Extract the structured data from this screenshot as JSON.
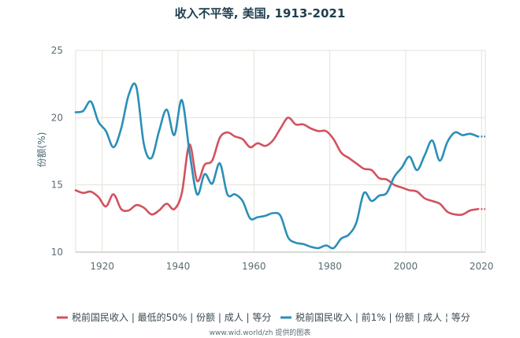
{
  "title": "收入不平等, 美国, 1913-2021",
  "credit": "www.wid.world/zh 提供的图表",
  "colors": {
    "bottom50": "#d2525e",
    "top1": "#2a8fb8",
    "grid": "#e2e2d8"
  },
  "chart_data": {
    "type": "line",
    "title": "收入不平等, 美国, 1913-2021",
    "xlabel": "",
    "ylabel": "份额(%)",
    "xlim": [
      1913,
      2021
    ],
    "ylim": [
      10,
      25
    ],
    "xticks": [
      1920,
      1940,
      1960,
      1980,
      2000,
      2020
    ],
    "yticks": [
      10,
      15,
      20,
      25
    ],
    "grid": true,
    "legend_position": "bottom",
    "series": [
      {
        "name": "税前国民收入 | 最低的50% | 份额 | 成人 | 等分",
        "color": "#d2525e",
        "x": [
          1913,
          1915,
          1917,
          1919,
          1921,
          1923,
          1925,
          1927,
          1929,
          1931,
          1933,
          1935,
          1937,
          1939,
          1941,
          1943,
          1945,
          1947,
          1949,
          1951,
          1953,
          1955,
          1957,
          1959,
          1961,
          1963,
          1965,
          1967,
          1969,
          1971,
          1973,
          1975,
          1977,
          1979,
          1981,
          1983,
          1985,
          1987,
          1989,
          1991,
          1993,
          1995,
          1997,
          1999,
          2001,
          2003,
          2005,
          2007,
          2009,
          2011,
          2013,
          2015,
          2017,
          2019,
          2021
        ],
        "y": [
          14.6,
          14.4,
          14.5,
          14.1,
          13.4,
          14.3,
          13.2,
          13.1,
          13.5,
          13.3,
          12.8,
          13.1,
          13.6,
          13.2,
          14.4,
          18.0,
          15.3,
          16.5,
          16.8,
          18.5,
          18.9,
          18.6,
          18.4,
          17.8,
          18.1,
          17.9,
          18.3,
          19.2,
          20.0,
          19.5,
          19.5,
          19.2,
          19.0,
          19.0,
          18.4,
          17.4,
          17.0,
          16.6,
          16.2,
          16.1,
          15.5,
          15.4,
          15.0,
          14.8,
          14.6,
          14.5,
          14.0,
          13.8,
          13.6,
          13.0,
          12.8,
          12.8,
          13.1,
          13.2,
          13.2
        ]
      },
      {
        "name": "税前国民收入 | 前1% | 份额 | 成人 ¦ 等分",
        "color": "#2a8fb8",
        "x": [
          1913,
          1915,
          1917,
          1919,
          1921,
          1923,
          1925,
          1927,
          1929,
          1931,
          1933,
          1935,
          1937,
          1939,
          1941,
          1943,
          1945,
          1947,
          1949,
          1951,
          1953,
          1955,
          1957,
          1959,
          1961,
          1963,
          1965,
          1967,
          1969,
          1971,
          1973,
          1975,
          1977,
          1979,
          1981,
          1983,
          1985,
          1987,
          1989,
          1991,
          1993,
          1995,
          1997,
          1999,
          2001,
          2003,
          2005,
          2007,
          2009,
          2011,
          2013,
          2015,
          2017,
          2019,
          2021
        ],
        "y": [
          20.4,
          20.5,
          21.2,
          19.7,
          19.0,
          17.8,
          19.2,
          21.7,
          22.3,
          18.0,
          17.0,
          19.0,
          20.6,
          18.7,
          21.3,
          17.5,
          14.3,
          15.8,
          15.1,
          16.6,
          14.3,
          14.3,
          13.8,
          12.5,
          12.6,
          12.7,
          12.9,
          12.7,
          11.1,
          10.7,
          10.6,
          10.4,
          10.3,
          10.5,
          10.3,
          11.0,
          11.3,
          12.2,
          14.4,
          13.8,
          14.2,
          14.4,
          15.6,
          16.3,
          17.1,
          16.1,
          17.2,
          18.3,
          16.8,
          18.2,
          18.9,
          18.7,
          18.8,
          18.6,
          18.6
        ]
      }
    ]
  }
}
